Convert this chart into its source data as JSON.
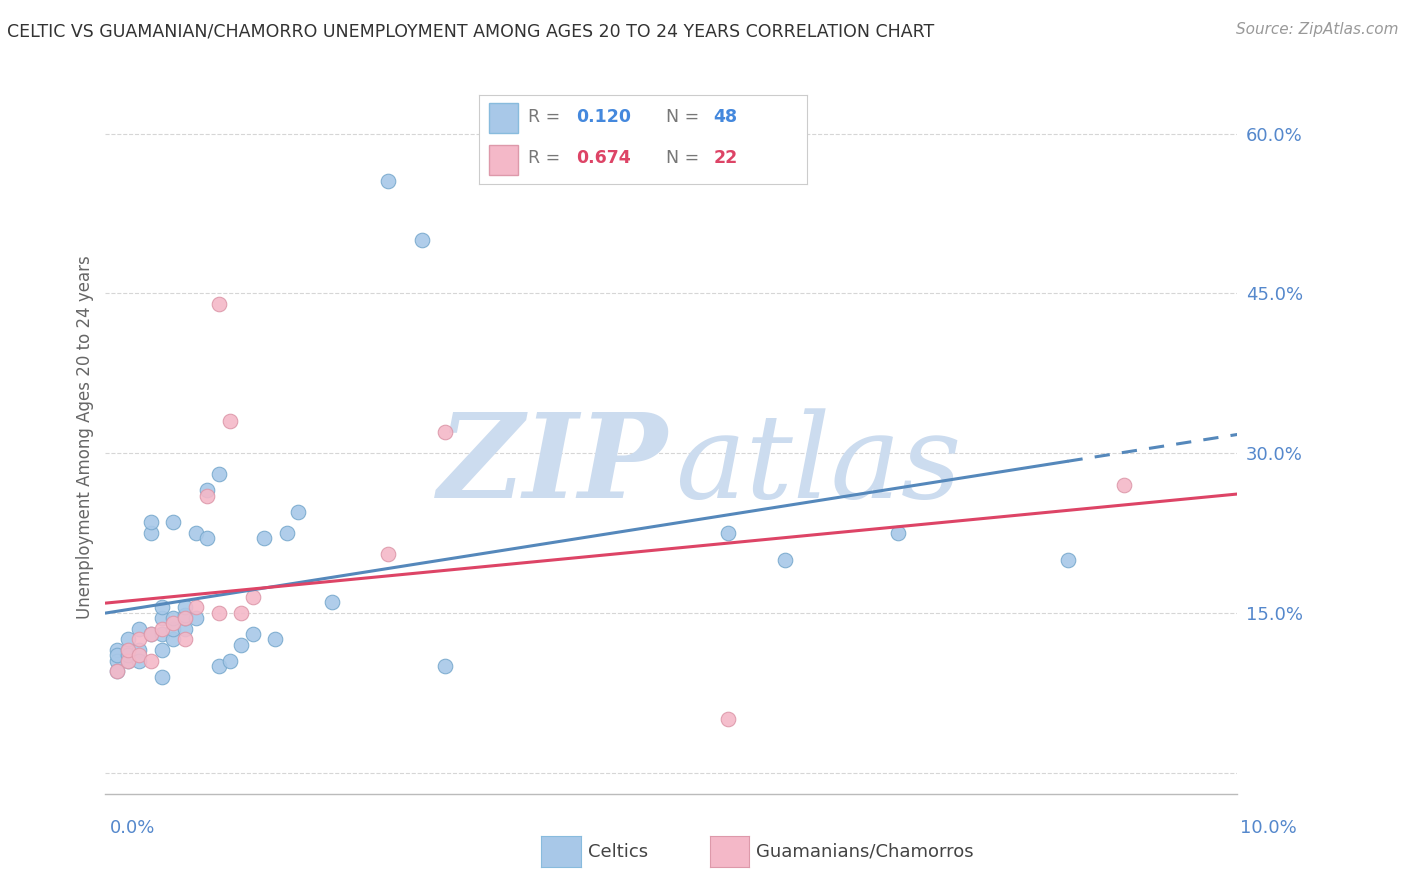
{
  "title": "CELTIC VS GUAMANIAN/CHAMORRO UNEMPLOYMENT AMONG AGES 20 TO 24 YEARS CORRELATION CHART",
  "source": "Source: ZipAtlas.com",
  "ylabel": "Unemployment Among Ages 20 to 24 years",
  "xlim": [
    0.0,
    0.1
  ],
  "ylim": [
    -0.02,
    0.65
  ],
  "color_celtic": "#a8c8e8",
  "color_guam": "#f4b8c8",
  "color_celtic_line": "#5588bb",
  "color_guam_line": "#dd4466",
  "watermark_zip_color": "#ccdcef",
  "watermark_atlas_color": "#ccdcef",
  "celtic_x": [
    0.001,
    0.001,
    0.001,
    0.001,
    0.002,
    0.002,
    0.002,
    0.002,
    0.003,
    0.003,
    0.003,
    0.004,
    0.004,
    0.004,
    0.005,
    0.005,
    0.005,
    0.005,
    0.005,
    0.006,
    0.006,
    0.006,
    0.006,
    0.007,
    0.007,
    0.007,
    0.007,
    0.008,
    0.008,
    0.009,
    0.009,
    0.01,
    0.01,
    0.011,
    0.012,
    0.013,
    0.014,
    0.015,
    0.016,
    0.017,
    0.02,
    0.025,
    0.028,
    0.03,
    0.055,
    0.06,
    0.07,
    0.085
  ],
  "celtic_y": [
    0.115,
    0.105,
    0.095,
    0.11,
    0.115,
    0.105,
    0.125,
    0.11,
    0.135,
    0.115,
    0.105,
    0.225,
    0.235,
    0.13,
    0.115,
    0.13,
    0.145,
    0.155,
    0.09,
    0.125,
    0.135,
    0.145,
    0.235,
    0.135,
    0.145,
    0.148,
    0.155,
    0.145,
    0.225,
    0.22,
    0.265,
    0.28,
    0.1,
    0.105,
    0.12,
    0.13,
    0.22,
    0.125,
    0.225,
    0.245,
    0.16,
    0.555,
    0.5,
    0.1,
    0.225,
    0.2,
    0.225,
    0.2
  ],
  "guam_x": [
    0.001,
    0.002,
    0.002,
    0.003,
    0.003,
    0.004,
    0.004,
    0.005,
    0.006,
    0.007,
    0.007,
    0.008,
    0.009,
    0.01,
    0.01,
    0.011,
    0.012,
    0.013,
    0.025,
    0.03,
    0.055,
    0.09
  ],
  "guam_y": [
    0.095,
    0.105,
    0.115,
    0.11,
    0.125,
    0.105,
    0.13,
    0.135,
    0.14,
    0.125,
    0.145,
    0.155,
    0.26,
    0.15,
    0.44,
    0.33,
    0.15,
    0.165,
    0.205,
    0.32,
    0.05,
    0.27
  ]
}
